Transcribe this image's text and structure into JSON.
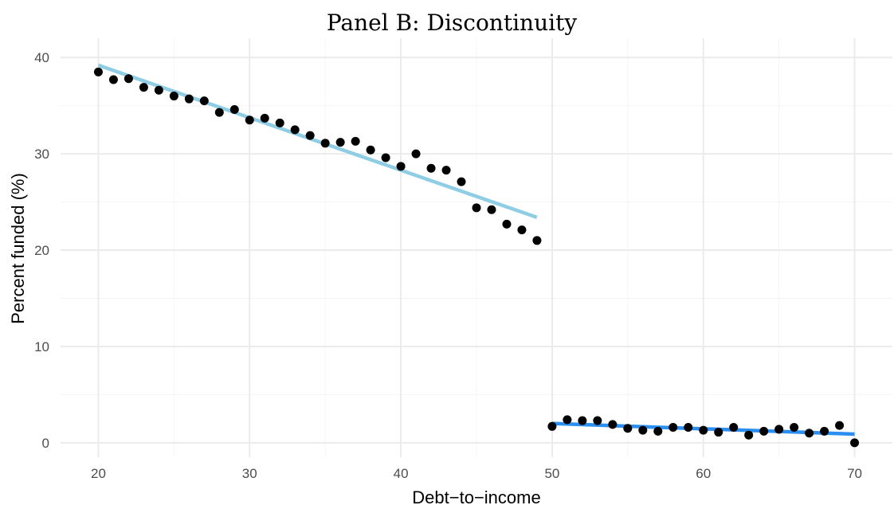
{
  "chart_data": {
    "type": "scatter",
    "title": "Panel B: Discontinuity",
    "xlabel": "Debt−to−income",
    "ylabel": "Percent funded (%)",
    "xlim": [
      17.5,
      72.5
    ],
    "ylim": [
      -1.5,
      42
    ],
    "x_ticks": [
      20,
      30,
      40,
      50,
      60,
      70
    ],
    "y_ticks": [
      0,
      10,
      20,
      30,
      40
    ],
    "x_tick_labels": [
      "20",
      "30",
      "40",
      "50",
      "60",
      "70"
    ],
    "y_tick_labels": [
      "0",
      "10",
      "20",
      "30",
      "40"
    ],
    "grid": true,
    "legend": "none",
    "points": {
      "x": [
        20,
        21,
        22,
        23,
        24,
        25,
        26,
        27,
        28,
        29,
        30,
        31,
        32,
        33,
        34,
        35,
        36,
        37,
        38,
        39,
        40,
        41,
        42,
        43,
        44,
        45,
        46,
        47,
        48,
        49,
        50,
        51,
        52,
        53,
        54,
        55,
        56,
        57,
        58,
        59,
        60,
        61,
        62,
        63,
        64,
        65,
        66,
        67,
        68,
        69,
        70
      ],
      "y": [
        38.5,
        37.7,
        37.8,
        36.9,
        36.6,
        36.0,
        35.7,
        35.5,
        34.3,
        34.6,
        33.5,
        33.7,
        33.2,
        32.5,
        31.9,
        31.1,
        31.2,
        31.3,
        30.4,
        29.6,
        28.7,
        30.0,
        28.5,
        28.3,
        27.1,
        24.4,
        24.2,
        22.7,
        22.1,
        21.0,
        1.7,
        2.4,
        2.3,
        2.3,
        1.9,
        1.5,
        1.3,
        1.2,
        1.6,
        1.6,
        1.3,
        1.1,
        1.6,
        0.8,
        1.2,
        1.4,
        1.6,
        1.0,
        1.2,
        1.8,
        0.0
      ],
      "color": "#000000"
    },
    "fit_lines": [
      {
        "x": [
          20,
          49
        ],
        "y": [
          39.2,
          23.4
        ],
        "color": "#8ecde3"
      },
      {
        "x": [
          50,
          70
        ],
        "y": [
          2.0,
          0.9
        ],
        "color": "#2a8ff0"
      }
    ]
  }
}
